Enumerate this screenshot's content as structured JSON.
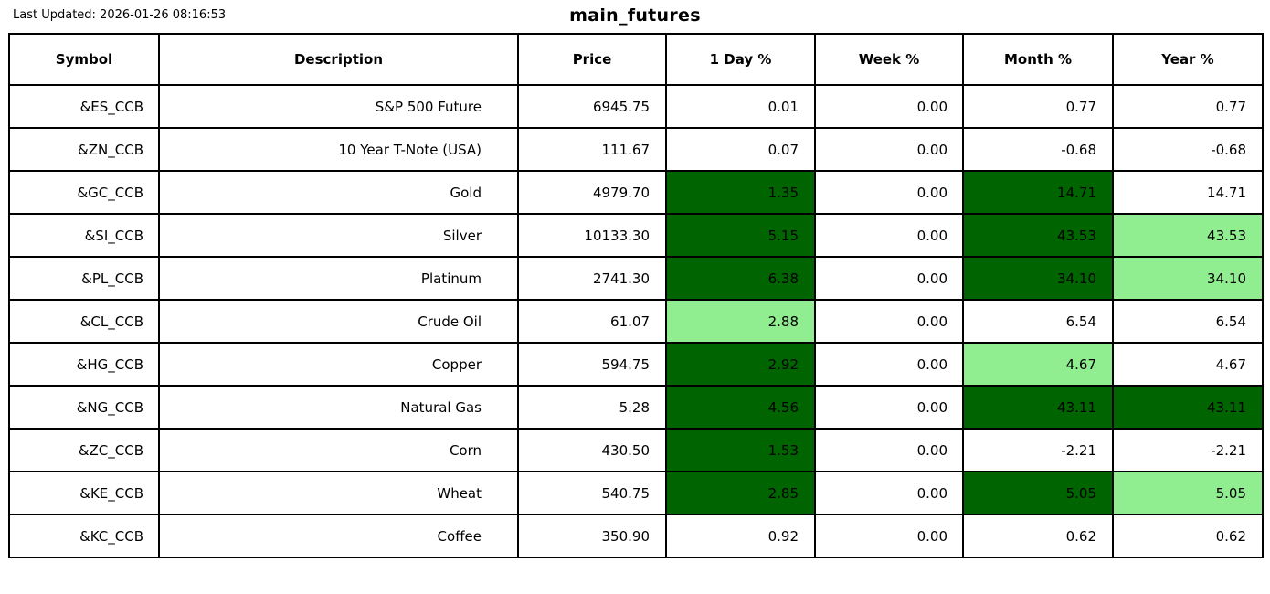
{
  "header": {
    "last_updated": "Last Updated: 2026-01-26 08:16:53",
    "title": "main_futures"
  },
  "colors": {
    "strong_gain_bg": "#006400",
    "mild_gain_bg": "#90EE90",
    "neutral_bg": "#FFFFFF",
    "border": "#000000",
    "text": "#000000"
  },
  "chart_data": {
    "type": "table",
    "title": "main_futures",
    "columns": [
      "Symbol",
      "Description",
      "Price",
      "1 Day %",
      "Week %",
      "Month %",
      "Year %"
    ],
    "highlight_legend": {
      "dark": "strong gain (dark green)",
      "light": "mild gain (light green)",
      "none": "no highlight (white)"
    },
    "rows": [
      {
        "cells": [
          {
            "text": "&ES_CCB"
          },
          {
            "text": "S&P 500 Future"
          },
          {
            "text": "6945.75"
          },
          {
            "text": "0.01",
            "bg": "none"
          },
          {
            "text": "0.00",
            "bg": "none"
          },
          {
            "text": "0.77",
            "bg": "none"
          },
          {
            "text": "0.77",
            "bg": "none"
          }
        ]
      },
      {
        "cells": [
          {
            "text": "&ZN_CCB"
          },
          {
            "text": "10 Year T-Note (USA)"
          },
          {
            "text": "111.67"
          },
          {
            "text": "0.07",
            "bg": "none"
          },
          {
            "text": "0.00",
            "bg": "none"
          },
          {
            "text": "-0.68",
            "bg": "none"
          },
          {
            "text": "-0.68",
            "bg": "none"
          }
        ]
      },
      {
        "cells": [
          {
            "text": "&GC_CCB"
          },
          {
            "text": "Gold"
          },
          {
            "text": "4979.70"
          },
          {
            "text": "1.35",
            "bg": "dark"
          },
          {
            "text": "0.00",
            "bg": "none"
          },
          {
            "text": "14.71",
            "bg": "dark"
          },
          {
            "text": "14.71",
            "bg": "none"
          }
        ]
      },
      {
        "cells": [
          {
            "text": "&SI_CCB"
          },
          {
            "text": "Silver"
          },
          {
            "text": "10133.30"
          },
          {
            "text": "5.15",
            "bg": "dark"
          },
          {
            "text": "0.00",
            "bg": "none"
          },
          {
            "text": "43.53",
            "bg": "dark"
          },
          {
            "text": "43.53",
            "bg": "light"
          }
        ]
      },
      {
        "cells": [
          {
            "text": "&PL_CCB"
          },
          {
            "text": "Platinum"
          },
          {
            "text": "2741.30"
          },
          {
            "text": "6.38",
            "bg": "dark"
          },
          {
            "text": "0.00",
            "bg": "none"
          },
          {
            "text": "34.10",
            "bg": "dark"
          },
          {
            "text": "34.10",
            "bg": "light"
          }
        ]
      },
      {
        "cells": [
          {
            "text": "&CL_CCB"
          },
          {
            "text": "Crude Oil"
          },
          {
            "text": "61.07"
          },
          {
            "text": "2.88",
            "bg": "light"
          },
          {
            "text": "0.00",
            "bg": "none"
          },
          {
            "text": "6.54",
            "bg": "none"
          },
          {
            "text": "6.54",
            "bg": "none"
          }
        ]
      },
      {
        "cells": [
          {
            "text": "&HG_CCB"
          },
          {
            "text": "Copper"
          },
          {
            "text": "594.75"
          },
          {
            "text": "2.92",
            "bg": "dark"
          },
          {
            "text": "0.00",
            "bg": "none"
          },
          {
            "text": "4.67",
            "bg": "light"
          },
          {
            "text": "4.67",
            "bg": "none"
          }
        ]
      },
      {
        "cells": [
          {
            "text": "&NG_CCB"
          },
          {
            "text": "Natural Gas"
          },
          {
            "text": "5.28"
          },
          {
            "text": "4.56",
            "bg": "dark"
          },
          {
            "text": "0.00",
            "bg": "none"
          },
          {
            "text": "43.11",
            "bg": "dark"
          },
          {
            "text": "43.11",
            "bg": "dark"
          }
        ]
      },
      {
        "cells": [
          {
            "text": "&ZC_CCB"
          },
          {
            "text": "Corn"
          },
          {
            "text": "430.50"
          },
          {
            "text": "1.53",
            "bg": "dark"
          },
          {
            "text": "0.00",
            "bg": "none"
          },
          {
            "text": "-2.21",
            "bg": "none"
          },
          {
            "text": "-2.21",
            "bg": "none"
          }
        ]
      },
      {
        "cells": [
          {
            "text": "&KE_CCB"
          },
          {
            "text": "Wheat"
          },
          {
            "text": "540.75"
          },
          {
            "text": "2.85",
            "bg": "dark"
          },
          {
            "text": "0.00",
            "bg": "none"
          },
          {
            "text": "5.05",
            "bg": "dark"
          },
          {
            "text": "5.05",
            "bg": "light"
          }
        ]
      },
      {
        "cells": [
          {
            "text": "&KC_CCB"
          },
          {
            "text": "Coffee"
          },
          {
            "text": "350.90"
          },
          {
            "text": "0.92",
            "bg": "none"
          },
          {
            "text": "0.00",
            "bg": "none"
          },
          {
            "text": "0.62",
            "bg": "none"
          },
          {
            "text": "0.62",
            "bg": "none"
          }
        ]
      }
    ]
  },
  "cell_semantic_names": [
    "symbol-cell",
    "description-cell",
    "price-cell",
    "day-change-cell",
    "week-change-cell",
    "month-change-cell",
    "year-change-cell"
  ]
}
